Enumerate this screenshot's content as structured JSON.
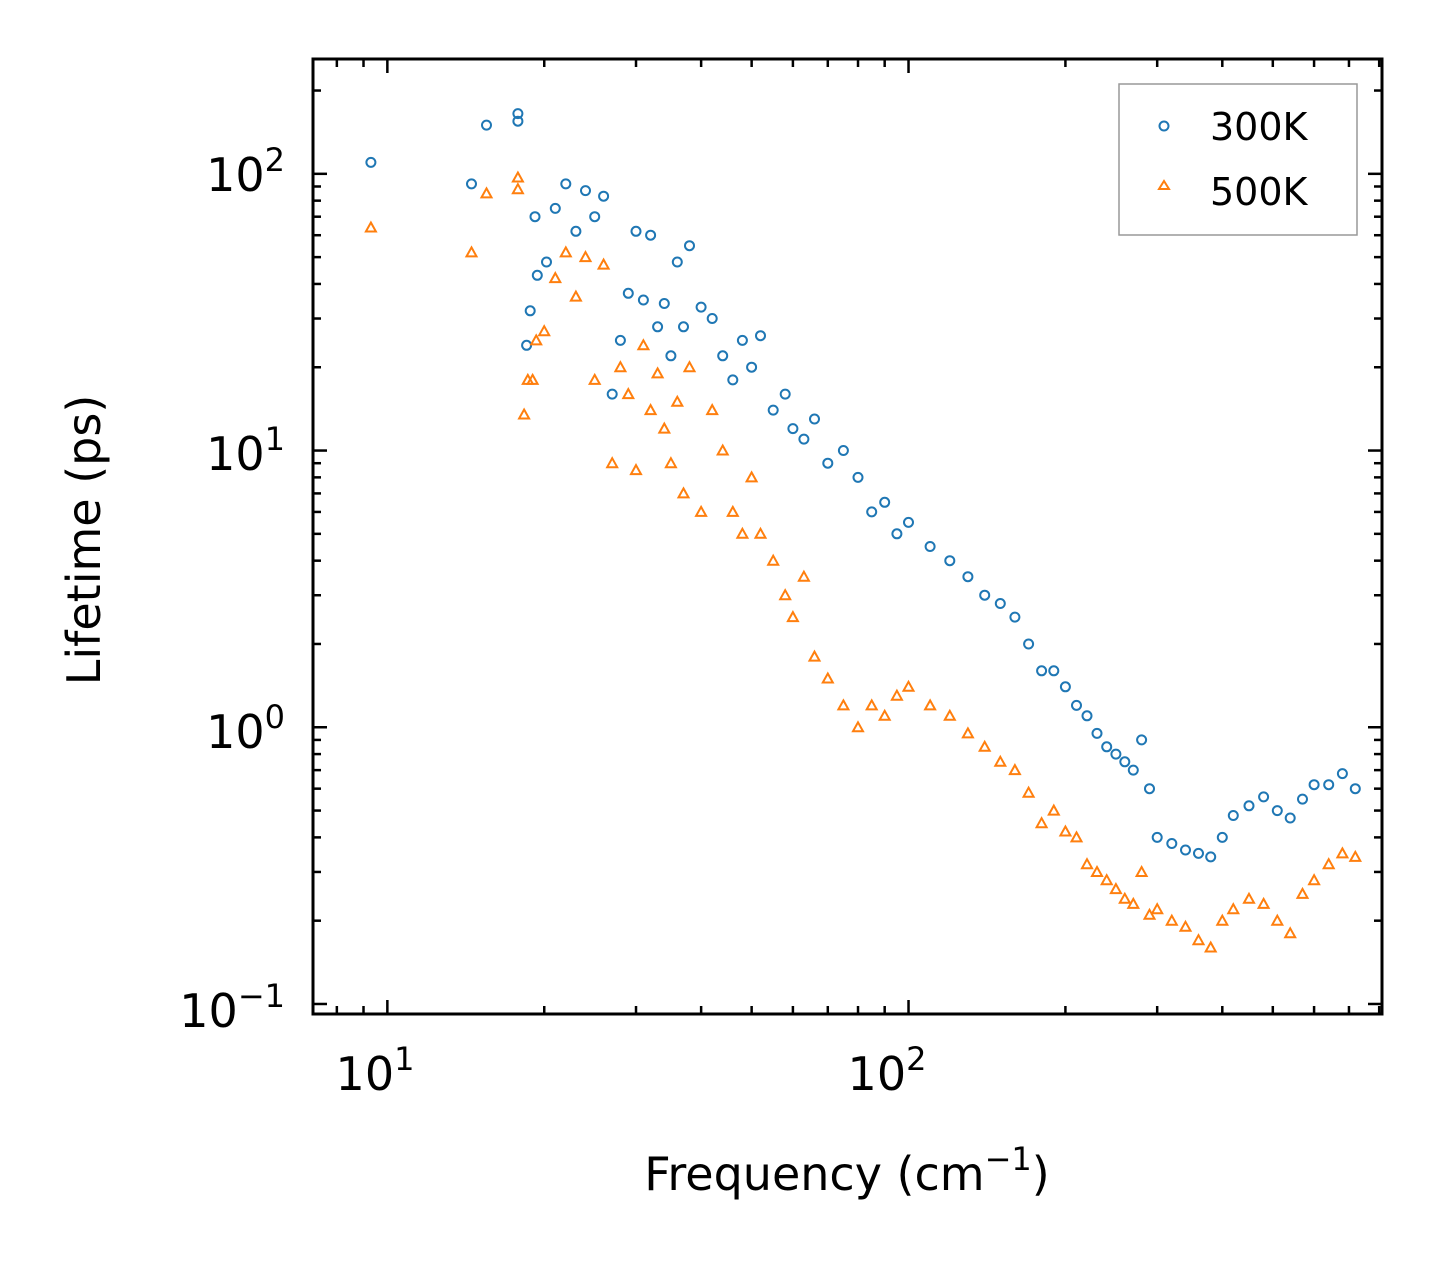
{
  "chart_data": {
    "type": "scatter",
    "xscale": "log",
    "yscale": "log",
    "xlim": [
      7.2,
      810
    ],
    "ylim": [
      0.092,
      260
    ],
    "xlabel": "Frequency (cm",
    "xlabel_sup": "−1",
    "xlabel_end": ")",
    "ylabel": "Lifetime (ps)",
    "x_ticks": [
      {
        "base": "10",
        "exp": "1"
      },
      {
        "base": "10",
        "exp": "2"
      }
    ],
    "y_ticks": [
      {
        "base": "10",
        "exp": "−1"
      },
      {
        "base": "10",
        "exp": "0"
      },
      {
        "base": "10",
        "exp": "1"
      },
      {
        "base": "10",
        "exp": "2"
      }
    ],
    "legend": {
      "position": "top-right"
    },
    "series": [
      {
        "name": "300K",
        "marker": "circle",
        "color": "#1f77b4",
        "points": [
          [
            9.3,
            110
          ],
          [
            14.5,
            92
          ],
          [
            15.5,
            150
          ],
          [
            17.8,
            165
          ],
          [
            17.8,
            155
          ],
          [
            18.5,
            24
          ],
          [
            18.8,
            32
          ],
          [
            19.2,
            70
          ],
          [
            19.4,
            43
          ],
          [
            20.2,
            48
          ],
          [
            21,
            75
          ],
          [
            22,
            92
          ],
          [
            23,
            62
          ],
          [
            24,
            87
          ],
          [
            25,
            70
          ],
          [
            26,
            83
          ],
          [
            27,
            16
          ],
          [
            28,
            25
          ],
          [
            29,
            37
          ],
          [
            30,
            62
          ],
          [
            31,
            35
          ],
          [
            32,
            60
          ],
          [
            33,
            28
          ],
          [
            34,
            34
          ],
          [
            35,
            22
          ],
          [
            36,
            48
          ],
          [
            37,
            28
          ],
          [
            38,
            55
          ],
          [
            40,
            33
          ],
          [
            42,
            30
          ],
          [
            44,
            22
          ],
          [
            46,
            18
          ],
          [
            48,
            25
          ],
          [
            50,
            20
          ],
          [
            52,
            26
          ],
          [
            55,
            14
          ],
          [
            58,
            16
          ],
          [
            60,
            12
          ],
          [
            63,
            11
          ],
          [
            66,
            13
          ],
          [
            70,
            9
          ],
          [
            75,
            10
          ],
          [
            80,
            8
          ],
          [
            85,
            6
          ],
          [
            90,
            6.5
          ],
          [
            95,
            5
          ],
          [
            100,
            5.5
          ],
          [
            110,
            4.5
          ],
          [
            120,
            4
          ],
          [
            130,
            3.5
          ],
          [
            140,
            3
          ],
          [
            150,
            2.8
          ],
          [
            160,
            2.5
          ],
          [
            170,
            2
          ],
          [
            180,
            1.6
          ],
          [
            190,
            1.6
          ],
          [
            200,
            1.4
          ],
          [
            210,
            1.2
          ],
          [
            220,
            1.1
          ],
          [
            230,
            0.95
          ],
          [
            240,
            0.85
          ],
          [
            250,
            0.8
          ],
          [
            260,
            0.75
          ],
          [
            270,
            0.7
          ],
          [
            280,
            0.9
          ],
          [
            290,
            0.6
          ],
          [
            300,
            0.4
          ],
          [
            320,
            0.38
          ],
          [
            340,
            0.36
          ],
          [
            360,
            0.35
          ],
          [
            380,
            0.34
          ],
          [
            400,
            0.4
          ],
          [
            420,
            0.48
          ],
          [
            450,
            0.52
          ],
          [
            480,
            0.56
          ],
          [
            510,
            0.5
          ],
          [
            540,
            0.47
          ],
          [
            570,
            0.55
          ],
          [
            600,
            0.62
          ],
          [
            640,
            0.62
          ],
          [
            680,
            0.68
          ],
          [
            720,
            0.6
          ]
        ]
      },
      {
        "name": "500K",
        "marker": "triangle",
        "color": "#ff7f0e",
        "points": [
          [
            9.3,
            64
          ],
          [
            14.5,
            52
          ],
          [
            15.5,
            85
          ],
          [
            17.8,
            97
          ],
          [
            17.8,
            88
          ],
          [
            18.3,
            13.5
          ],
          [
            18.6,
            18
          ],
          [
            19,
            18
          ],
          [
            19.3,
            25
          ],
          [
            20,
            27
          ],
          [
            21,
            42
          ],
          [
            22,
            52
          ],
          [
            23,
            36
          ],
          [
            24,
            50
          ],
          [
            25,
            18
          ],
          [
            26,
            47
          ],
          [
            27,
            9
          ],
          [
            28,
            20
          ],
          [
            29,
            16
          ],
          [
            30,
            8.5
          ],
          [
            31,
            24
          ],
          [
            32,
            14
          ],
          [
            33,
            19
          ],
          [
            34,
            12
          ],
          [
            35,
            9
          ],
          [
            36,
            15
          ],
          [
            37,
            7
          ],
          [
            38,
            20
          ],
          [
            40,
            6
          ],
          [
            42,
            14
          ],
          [
            44,
            10
          ],
          [
            46,
            6
          ],
          [
            48,
            5
          ],
          [
            50,
            8
          ],
          [
            52,
            5
          ],
          [
            55,
            4
          ],
          [
            58,
            3
          ],
          [
            60,
            2.5
          ],
          [
            63,
            3.5
          ],
          [
            66,
            1.8
          ],
          [
            70,
            1.5
          ],
          [
            75,
            1.2
          ],
          [
            80,
            1
          ],
          [
            85,
            1.2
          ],
          [
            90,
            1.1
          ],
          [
            95,
            1.3
          ],
          [
            100,
            1.4
          ],
          [
            110,
            1.2
          ],
          [
            120,
            1.1
          ],
          [
            130,
            0.95
          ],
          [
            140,
            0.85
          ],
          [
            150,
            0.75
          ],
          [
            160,
            0.7
          ],
          [
            170,
            0.58
          ],
          [
            180,
            0.45
          ],
          [
            190,
            0.5
          ],
          [
            200,
            0.42
          ],
          [
            210,
            0.4
          ],
          [
            220,
            0.32
          ],
          [
            230,
            0.3
          ],
          [
            240,
            0.28
          ],
          [
            250,
            0.26
          ],
          [
            260,
            0.24
          ],
          [
            270,
            0.23
          ],
          [
            280,
            0.3
          ],
          [
            290,
            0.21
          ],
          [
            300,
            0.22
          ],
          [
            320,
            0.2
          ],
          [
            340,
            0.19
          ],
          [
            360,
            0.17
          ],
          [
            380,
            0.16
          ],
          [
            400,
            0.2
          ],
          [
            420,
            0.22
          ],
          [
            450,
            0.24
          ],
          [
            480,
            0.23
          ],
          [
            510,
            0.2
          ],
          [
            540,
            0.18
          ],
          [
            570,
            0.25
          ],
          [
            600,
            0.28
          ],
          [
            640,
            0.32
          ],
          [
            680,
            0.35
          ],
          [
            720,
            0.34
          ]
        ]
      }
    ]
  }
}
